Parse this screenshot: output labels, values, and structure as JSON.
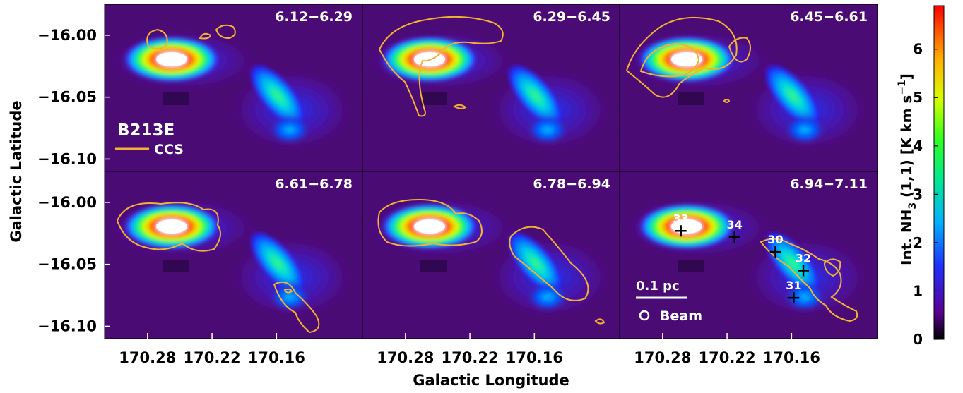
{
  "chart_data": {
    "type": "heatmap",
    "title": "",
    "xlabel": "Galactic Longitude",
    "ylabel": "Galactic Latitude",
    "x_ticks": [
      "170.28",
      "170.22",
      "170.16"
    ],
    "y_ticks": [
      "−16.00",
      "−16.05",
      "−16.10"
    ],
    "x_tick_values": [
      170.28,
      170.22,
      170.16
    ],
    "y_tick_values": [
      -16.0,
      -16.05,
      -16.1
    ],
    "xlim": [
      170.32,
      170.08
    ],
    "ylim": [
      -16.11,
      -15.975
    ],
    "panels": [
      {
        "label": "6.12−6.29"
      },
      {
        "label": "6.29−6.45"
      },
      {
        "label": "6.45−6.61"
      },
      {
        "label": "6.61−6.78"
      },
      {
        "label": "6.78−6.94"
      },
      {
        "label": "6.94−7.11"
      }
    ],
    "legend": {
      "region": "B213E",
      "contour": "CCS",
      "contour_color": "#f2b233"
    },
    "colorbar": {
      "label_prefix": "Int. NH",
      "label_sub": "3",
      "label_mid": " (1,1) [K km s",
      "label_sup": "−1",
      "label_suffix": "]",
      "ticks": [
        "0",
        "1",
        "2",
        "3",
        "4",
        "5",
        "6"
      ],
      "range": [
        0,
        6.9
      ],
      "colormap": "rainbow"
    },
    "markers": [
      {
        "id": "33",
        "l": 170.263,
        "b": -16.023
      },
      {
        "id": "34",
        "l": 170.213,
        "b": -16.028
      },
      {
        "id": "30",
        "l": 170.175,
        "b": -16.04
      },
      {
        "id": "32",
        "l": 170.149,
        "b": -16.055
      },
      {
        "id": "31",
        "l": 170.158,
        "b": -16.077
      }
    ],
    "scalebar": {
      "label": "0.1 pc"
    },
    "beam": {
      "label": "Beam"
    }
  }
}
